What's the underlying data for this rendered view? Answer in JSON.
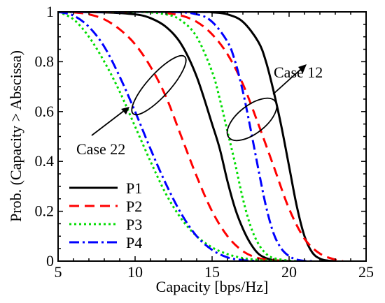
{
  "chart_data": {
    "type": "line",
    "xlabel": "Capacity [bps/Hz]",
    "ylabel": "Prob. (Capacity > Abscissa)",
    "xlim": [
      5,
      25
    ],
    "ylim": [
      0,
      1
    ],
    "xticks": [
      5,
      10,
      15,
      20,
      25
    ],
    "yticks": [
      0,
      0.2,
      0.4,
      0.6,
      0.8,
      1
    ],
    "ytick_labels": [
      "0",
      "0.2",
      "0.4",
      "0.6",
      "0.8",
      "1"
    ],
    "grid": false,
    "legend": {
      "position": "bottom-left",
      "entries": [
        "P1",
        "P2",
        "P3",
        "P4"
      ]
    },
    "series": [
      {
        "name": "P1",
        "group": "Case 22",
        "color": "#000000",
        "dash": "solid",
        "points": [
          [
            5,
            1
          ],
          [
            8,
            0.998
          ],
          [
            10,
            0.99
          ],
          [
            11,
            0.975
          ],
          [
            12,
            0.94
          ],
          [
            13,
            0.87
          ],
          [
            14,
            0.74
          ],
          [
            15,
            0.55
          ],
          [
            15.5,
            0.45
          ],
          [
            16,
            0.32
          ],
          [
            16.5,
            0.21
          ],
          [
            17,
            0.13
          ],
          [
            17.5,
            0.07
          ],
          [
            18,
            0.03
          ],
          [
            18.5,
            0.012
          ],
          [
            19,
            0.004
          ],
          [
            20,
            0
          ]
        ]
      },
      {
        "name": "P2",
        "group": "Case 22",
        "color": "#ff0000",
        "dash": "dashed",
        "points": [
          [
            5,
            1
          ],
          [
            6,
            0.998
          ],
          [
            7,
            0.99
          ],
          [
            8,
            0.97
          ],
          [
            9,
            0.93
          ],
          [
            10,
            0.87
          ],
          [
            11,
            0.78
          ],
          [
            12,
            0.66
          ],
          [
            13,
            0.5
          ],
          [
            14,
            0.34
          ],
          [
            15,
            0.2
          ],
          [
            16,
            0.1
          ],
          [
            17,
            0.04
          ],
          [
            18,
            0.012
          ],
          [
            19,
            0.003
          ],
          [
            20,
            0
          ]
        ]
      },
      {
        "name": "P3",
        "group": "Case 22",
        "color": "#00dd00",
        "dash": "dotted",
        "points": [
          [
            5,
            1
          ],
          [
            6,
            0.97
          ],
          [
            7,
            0.9
          ],
          [
            8,
            0.8
          ],
          [
            9,
            0.68
          ],
          [
            10,
            0.54
          ],
          [
            11,
            0.4
          ],
          [
            12,
            0.27
          ],
          [
            13,
            0.17
          ],
          [
            14,
            0.1
          ],
          [
            15,
            0.055
          ],
          [
            16,
            0.028
          ],
          [
            17,
            0.012
          ],
          [
            18,
            0.005
          ],
          [
            19,
            0.001
          ],
          [
            20,
            0
          ]
        ]
      },
      {
        "name": "P4",
        "group": "Case 22",
        "color": "#0000ff",
        "dash": "dashdot",
        "points": [
          [
            5,
            1
          ],
          [
            6,
            0.985
          ],
          [
            7,
            0.94
          ],
          [
            8,
            0.86
          ],
          [
            9,
            0.74
          ],
          [
            10,
            0.6
          ],
          [
            11,
            0.45
          ],
          [
            12,
            0.31
          ],
          [
            13,
            0.19
          ],
          [
            14,
            0.1
          ],
          [
            15,
            0.045
          ],
          [
            16,
            0.015
          ],
          [
            17,
            0.004
          ],
          [
            18,
            0
          ]
        ]
      },
      {
        "name": "P1",
        "group": "Case 12",
        "color": "#000000",
        "dash": "solid",
        "points": [
          [
            5,
            1
          ],
          [
            14,
            1
          ],
          [
            15,
            0.998
          ],
          [
            16,
            0.99
          ],
          [
            17,
            0.96
          ],
          [
            18,
            0.88
          ],
          [
            18.5,
            0.8
          ],
          [
            19,
            0.68
          ],
          [
            19.5,
            0.54
          ],
          [
            20,
            0.38
          ],
          [
            20.5,
            0.22
          ],
          [
            21,
            0.1
          ],
          [
            21.5,
            0.035
          ],
          [
            22,
            0.01
          ],
          [
            22.5,
            0.002
          ],
          [
            23,
            0
          ]
        ]
      },
      {
        "name": "P2",
        "group": "Case 12",
        "color": "#ff0000",
        "dash": "dashed",
        "points": [
          [
            5,
            1
          ],
          [
            11,
            1
          ],
          [
            12,
            0.995
          ],
          [
            13,
            0.985
          ],
          [
            14,
            0.96
          ],
          [
            15,
            0.91
          ],
          [
            16,
            0.83
          ],
          [
            17,
            0.71
          ],
          [
            18,
            0.55
          ],
          [
            19,
            0.38
          ],
          [
            20,
            0.21
          ],
          [
            21,
            0.09
          ],
          [
            22,
            0.03
          ],
          [
            23,
            0.006
          ],
          [
            23.5,
            0
          ]
        ]
      },
      {
        "name": "P3",
        "group": "Case 12",
        "color": "#00dd00",
        "dash": "dotted",
        "points": [
          [
            5,
            1
          ],
          [
            10,
            1
          ],
          [
            12,
            0.99
          ],
          [
            13,
            0.965
          ],
          [
            14,
            0.9
          ],
          [
            15,
            0.76
          ],
          [
            15.5,
            0.65
          ],
          [
            16,
            0.52
          ],
          [
            16.5,
            0.39
          ],
          [
            17,
            0.25
          ],
          [
            17.5,
            0.14
          ],
          [
            18,
            0.07
          ],
          [
            18.5,
            0.03
          ],
          [
            19,
            0.012
          ],
          [
            20,
            0.002
          ],
          [
            20.5,
            0
          ]
        ]
      },
      {
        "name": "P4",
        "group": "Case 12",
        "color": "#0000ff",
        "dash": "dashdot",
        "points": [
          [
            5,
            1
          ],
          [
            12,
            1
          ],
          [
            14,
            0.99
          ],
          [
            15,
            0.96
          ],
          [
            16,
            0.88
          ],
          [
            16.5,
            0.8
          ],
          [
            17,
            0.68
          ],
          [
            17.5,
            0.53
          ],
          [
            18,
            0.37
          ],
          [
            18.5,
            0.22
          ],
          [
            19,
            0.11
          ],
          [
            19.5,
            0.05
          ],
          [
            20,
            0.02
          ],
          [
            20.5,
            0.006
          ],
          [
            21,
            0.001
          ],
          [
            21.5,
            0
          ]
        ]
      }
    ],
    "annotations": [
      {
        "text": "Case 12"
      },
      {
        "text": "Case 22"
      }
    ]
  }
}
